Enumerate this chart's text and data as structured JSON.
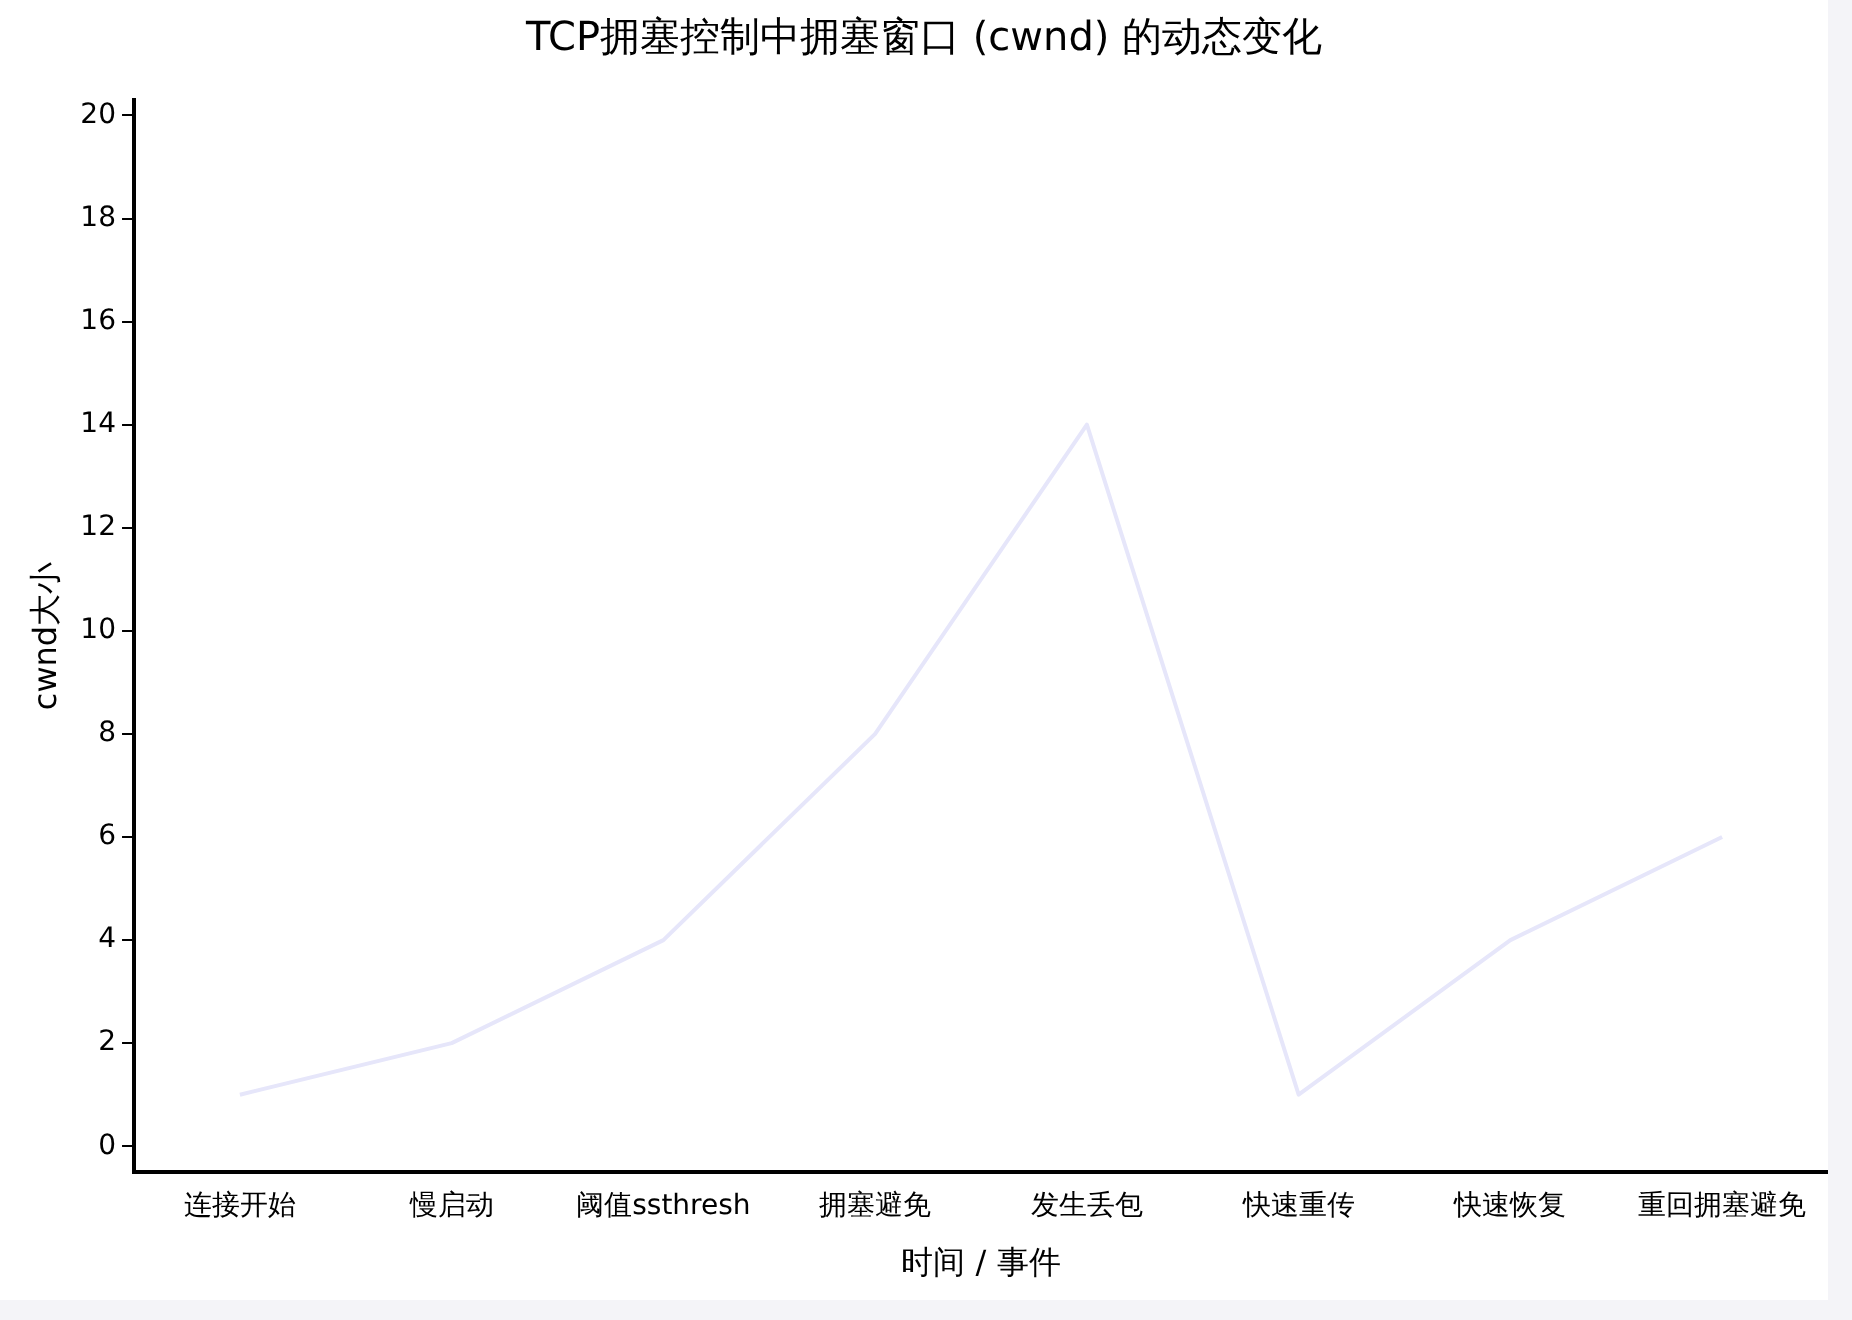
{
  "chart_data": {
    "type": "line",
    "title": "TCP拥塞控制中拥塞窗口 (cwnd) 的动态变化",
    "xlabel": "时间 / 事件",
    "ylabel": "cwnd大小",
    "categories": [
      "连接开始",
      "慢启动",
      "阈值ssthresh",
      "拥塞避免",
      "发生丢包",
      "快速重传",
      "快速恢复",
      "重回拥塞避免"
    ],
    "series": [
      {
        "color": "#e6e6fa",
        "values": [
          1,
          2,
          4,
          8,
          14,
          1,
          4,
          6
        ]
      }
    ],
    "ylim": [
      -0.5,
      20.3
    ],
    "yticks": [
      0,
      2,
      4,
      6,
      8,
      10,
      12,
      14,
      16,
      18,
      20
    ],
    "grid": false,
    "legend": false,
    "marker": "none",
    "line_style": "solid"
  }
}
